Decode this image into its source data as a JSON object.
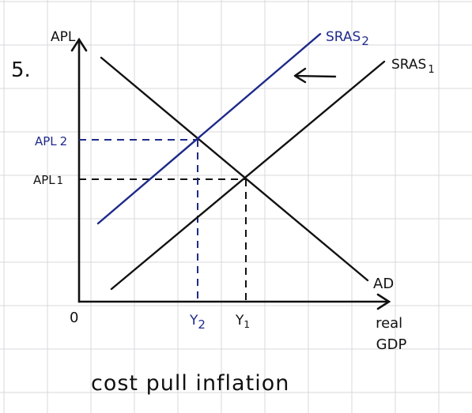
{
  "question_number": "5.",
  "caption": "cost pull inflation",
  "origin_label": "0",
  "colors": {
    "background": "#ffffff",
    "grid": "#d9d9de",
    "ink": "#111111",
    "accent": "#1e2a8a"
  },
  "chart_data": {
    "type": "line",
    "ylabel": "APL",
    "xlabel": "real GDP",
    "curves": [
      {
        "name": "AD",
        "label": "AD",
        "color": "#111111"
      },
      {
        "name": "SRAS1",
        "label": "SRAS",
        "subscript": "1",
        "color": "#111111"
      },
      {
        "name": "SRAS2",
        "label": "SRAS",
        "subscript": "2",
        "color": "#1e2a8a"
      }
    ],
    "shift_arrow": {
      "direction": "left",
      "from": "SRAS1",
      "to": "SRAS2"
    },
    "equilibria": [
      {
        "price_label": "APL",
        "price_sub": "1",
        "output_label": "Y",
        "output_sub": "1",
        "color": "#111111"
      },
      {
        "price_label": "APL",
        "price_sub": "2",
        "output_label": "Y",
        "output_sub": "2",
        "color": "#1e2a8a"
      }
    ],
    "grid": true
  }
}
